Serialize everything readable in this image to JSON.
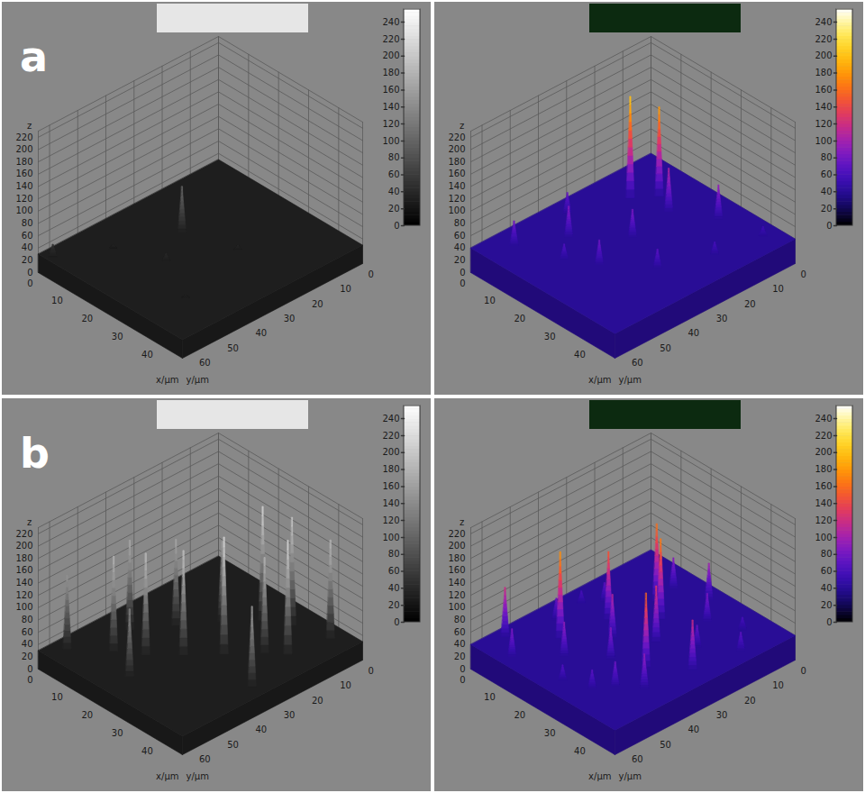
{
  "chart_data": [
    {
      "type": "surface3d",
      "label": "a",
      "color": "gray",
      "x_label": "x/µm",
      "y_label": "y/µm",
      "z_label": "z",
      "xlim": [
        0,
        48
      ],
      "xticks": [
        0,
        10,
        20,
        30,
        40
      ],
      "ylim": [
        0,
        64
      ],
      "yticks": [
        0,
        10,
        20,
        30,
        40,
        50,
        60
      ],
      "zlim": [
        0,
        230
      ],
      "zticks": [
        0,
        20,
        40,
        60,
        80,
        100,
        120,
        140,
        160,
        180,
        200,
        220
      ],
      "colorbar": {
        "range": [
          0,
          255
        ],
        "ticks": [
          0,
          20,
          40,
          60,
          80,
          100,
          120,
          140,
          160,
          180,
          200,
          220,
          240
        ]
      },
      "baseline": 30,
      "peaks": {
        "x": [
          16,
          3,
          22,
          30,
          10,
          36
        ],
        "y": [
          30,
          62,
          42,
          25,
          48,
          50
        ],
        "z": [
          105,
          50,
          42,
          38,
          36,
          34
        ]
      }
    },
    {
      "type": "surface3d",
      "color": "fire",
      "x_label": "x/µm",
      "y_label": "y/µm",
      "z_label": "z",
      "xlim": [
        0,
        48
      ],
      "xticks": [
        0,
        10,
        20,
        30,
        40
      ],
      "ylim": [
        0,
        64
      ],
      "yticks": [
        0,
        10,
        20,
        30,
        40,
        50,
        60
      ],
      "zlim": [
        0,
        230
      ],
      "zticks": [
        0,
        20,
        40,
        60,
        80,
        100,
        120,
        140,
        160,
        180,
        200,
        220
      ],
      "colorbar": {
        "range": [
          0,
          255
        ],
        "ticks": [
          0,
          20,
          40,
          60,
          80,
          100,
          120,
          140,
          160,
          180,
          200,
          220,
          240
        ]
      },
      "baseline": 40,
      "peaks": {
        "x": [
          10,
          14,
          20,
          12,
          6,
          25,
          30,
          22,
          35,
          40,
          5,
          18,
          42
        ],
        "y": [
          18,
          12,
          15,
          42,
          55,
          45,
          8,
          30,
          35,
          20,
          35,
          50,
          5
        ],
        "z": [
          205,
          185,
          110,
          90,
          80,
          80,
          95,
          85,
          70,
          60,
          75,
          65,
          55
        ]
      }
    },
    {
      "type": "surface3d",
      "label": "b",
      "color": "gray",
      "x_label": "x/µm",
      "y_label": "y/µm",
      "z_label": "z",
      "xlim": [
        0,
        48
      ],
      "xticks": [
        0,
        10,
        20,
        30,
        40
      ],
      "ylim": [
        0,
        64
      ],
      "yticks": [
        0,
        10,
        20,
        30,
        40,
        50,
        60
      ],
      "zlim": [
        0,
        230
      ],
      "zticks": [
        0,
        20,
        40,
        60,
        80,
        100,
        120,
        140,
        160,
        180,
        200,
        220
      ],
      "colorbar": {
        "range": [
          0,
          255
        ],
        "ticks": [
          0,
          20,
          40,
          60,
          80,
          100,
          120,
          140,
          160,
          180,
          200,
          220,
          240
        ]
      },
      "baseline": 30,
      "peaks": {
        "x": [
          4,
          8,
          12,
          14,
          18,
          20,
          24,
          26,
          30,
          32,
          36,
          40,
          42,
          44,
          22
        ],
        "y": [
          58,
          40,
          50,
          30,
          45,
          20,
          38,
          12,
          30,
          8,
          22,
          18,
          5,
          35,
          55
        ],
        "z": [
          150,
          175,
          185,
          170,
          195,
          160,
          200,
          215,
          220,
          205,
          185,
          215,
          190,
          160,
          140
        ]
      }
    },
    {
      "type": "surface3d",
      "color": "fire",
      "x_label": "x/µm",
      "y_label": "y/µm",
      "z_label": "z",
      "xlim": [
        0,
        48
      ],
      "xticks": [
        0,
        10,
        20,
        30,
        40
      ],
      "ylim": [
        0,
        64
      ],
      "yticks": [
        0,
        10,
        20,
        30,
        40,
        50,
        60
      ],
      "zlim": [
        0,
        230
      ],
      "zticks": [
        0,
        20,
        40,
        60,
        80,
        100,
        120,
        140,
        160,
        180,
        200,
        220
      ],
      "colorbar": {
        "range": [
          0,
          255
        ],
        "ticks": [
          0,
          20,
          40,
          60,
          80,
          100,
          120,
          140,
          160,
          180,
          200,
          220,
          240
        ]
      },
      "baseline": 40,
      "peaks": {
        "x": [
          3,
          6,
          8,
          10,
          12,
          14,
          16,
          18,
          20,
          22,
          24,
          26,
          28,
          30,
          32,
          34,
          36,
          38,
          40,
          42,
          44,
          15,
          25,
          35,
          5
        ],
        "y": [
          55,
          40,
          25,
          60,
          45,
          30,
          15,
          50,
          35,
          20,
          5,
          42,
          28,
          12,
          55,
          38,
          22,
          8,
          45,
          30,
          15,
          8,
          58,
          50,
          30
        ],
        "z": [
          120,
          75,
          70,
          85,
          180,
          150,
          165,
          95,
          110,
          170,
          100,
          90,
          130,
          85,
          70,
          160,
          75,
          60,
          95,
          120,
          70,
          90,
          65,
          80,
          60
        ]
      }
    }
  ]
}
